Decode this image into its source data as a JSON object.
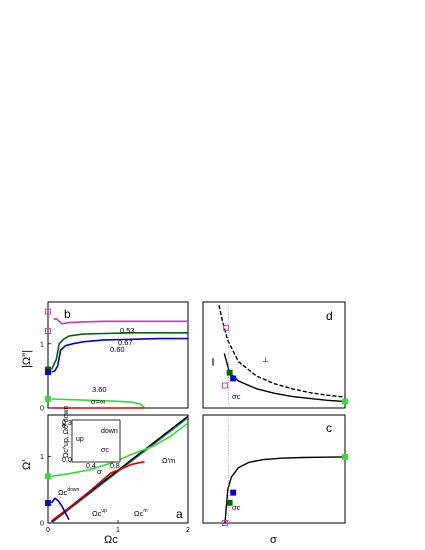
{
  "colors": {
    "magenta": "#cc33cc",
    "green_dark": "#006600",
    "blue": "#0000cc",
    "green_light": "#33dd33",
    "red": "#dd0000",
    "teal": "#3c8c8c",
    "orange": "#cc6600",
    "black": "#000000"
  },
  "chart_data": [
    {
      "id": "b",
      "type": "line",
      "panel_letter": "b",
      "ylabel": "|Ω''|",
      "xlim": [
        0,
        2
      ],
      "ylim": [
        0,
        1.65
      ],
      "yticks": [
        "0",
        "1"
      ],
      "series": [
        {
          "name": "0.53",
          "color": "magenta",
          "x": [
            0.08,
            0.12,
            0.2,
            0.3,
            0.5,
            0.8,
            1.2,
            1.6,
            2.0
          ],
          "y": [
            1.38,
            1.39,
            1.31,
            1.33,
            1.34,
            1.35,
            1.35,
            1.35,
            1.35
          ]
        },
        {
          "name": "0.67",
          "color": "green_dark",
          "x": [
            0.05,
            0.12,
            0.16,
            0.22,
            0.3,
            0.5,
            0.8,
            1.2,
            1.6,
            2.0
          ],
          "y": [
            0.6,
            0.76,
            1.0,
            1.07,
            1.12,
            1.15,
            1.16,
            1.17,
            1.17,
            1.17
          ]
        },
        {
          "name": "0.60",
          "color": "blue",
          "x": [
            0.05,
            0.1,
            0.14,
            0.18,
            0.25,
            0.35,
            0.5,
            0.8,
            1.2,
            1.6,
            2.0
          ],
          "y": [
            0.56,
            0.58,
            0.66,
            0.9,
            0.97,
            1.0,
            1.03,
            1.06,
            1.07,
            1.08,
            1.08
          ]
        },
        {
          "name": "3.60",
          "color": "green_light",
          "x": [
            0.05,
            0.3,
            0.6,
            0.9,
            1.2,
            1.32,
            1.36,
            1.38
          ],
          "y": [
            0.14,
            0.13,
            0.12,
            0.11,
            0.09,
            0.06,
            0.02,
            0.0
          ]
        },
        {
          "name": "σ=∞",
          "color": "red",
          "x": [
            0.05,
            1.38
          ],
          "y": [
            0.0,
            0.0
          ]
        }
      ],
      "labels": [
        "0.53",
        "0.67",
        "0.60",
        "3.60",
        "σ=∞"
      ]
    },
    {
      "id": "a",
      "type": "line",
      "panel_letter": "a",
      "ylabel": "Ω'",
      "xlabel": "Ωc",
      "xlim": [
        0,
        2
      ],
      "ylim": [
        0,
        1.62
      ],
      "xticks": [
        "0",
        "1",
        "2"
      ],
      "yticks": [
        "0",
        "1"
      ],
      "series": [
        {
          "name": "teal",
          "color": "teal",
          "x": [
            0.05,
            2.0
          ],
          "y": [
            0.0,
            1.58
          ]
        },
        {
          "name": "black",
          "color": "black",
          "x": [
            0.05,
            2.0
          ],
          "y": [
            0.02,
            1.6
          ]
        },
        {
          "name": "green_light",
          "color": "green_light",
          "x": [
            0.05,
            0.3,
            0.6,
            0.9,
            1.2,
            1.5,
            1.75,
            2.0
          ],
          "y": [
            0.7,
            0.74,
            0.8,
            0.9,
            1.03,
            1.15,
            1.3,
            1.5
          ]
        },
        {
          "name": "red",
          "color": "red",
          "x": [
            0.05,
            0.3,
            0.6,
            0.9,
            1.2,
            1.38
          ],
          "y": [
            0.03,
            0.23,
            0.48,
            0.75,
            0.88,
            0.92
          ]
        },
        {
          "name": "blue",
          "color": "blue",
          "x": [
            0.05,
            0.1,
            0.15,
            0.2,
            0.25,
            0.3
          ],
          "y": [
            0.3,
            0.37,
            0.33,
            0.25,
            0.15,
            0.05
          ]
        }
      ],
      "labels": {
        "omega_c_down": "Ωc",
        "omega_c_down_sup": "down",
        "omega_c_up": "Ωc",
        "omega_c_up_sup": "up",
        "omega_c_m": "Ωc",
        "omega_c_m_sup": "m",
        "omega_m_prime": "Ω'm",
        "sigma": "σ"
      },
      "inset": {
        "panel_letter": "e",
        "ylabel": "Ωc^up, Ωc^down",
        "xticks": [
          "0,4",
          "0,8"
        ],
        "yticks": [
          "0,0",
          "0,3"
        ],
        "label_up": "up",
        "label_down": "down",
        "label_sigma_c": "σc"
      }
    },
    {
      "id": "d",
      "type": "line",
      "panel_letter": "d",
      "xlim": [
        0,
        4
      ],
      "ylim": [
        0,
        1.65
      ],
      "series": [
        {
          "name": "∥",
          "color": "black",
          "style": "solid",
          "x": [
            0.6,
            0.75,
            1.0,
            1.5,
            2.0,
            2.5,
            3.0,
            3.5,
            4.0
          ],
          "y": [
            0.85,
            0.55,
            0.42,
            0.3,
            0.23,
            0.18,
            0.15,
            0.12,
            0.1
          ]
        },
        {
          "name": "⊥",
          "color": "black",
          "style": "dashed",
          "x": [
            0.45,
            0.55,
            0.7,
            1.0,
            1.5,
            2.0,
            2.5,
            3.0,
            3.5,
            4.0
          ],
          "y": [
            1.6,
            1.35,
            1.05,
            0.72,
            0.5,
            0.38,
            0.3,
            0.24,
            0.2,
            0.17
          ]
        }
      ],
      "labels": {
        "parallel": "∥",
        "perp": "⊥",
        "sigma_c": "σc"
      }
    },
    {
      "id": "c",
      "type": "line",
      "panel_letter": "c",
      "xlabel": "σ",
      "xlim": [
        0,
        4
      ],
      "ylim": [
        0,
        1.6
      ],
      "series": [
        {
          "name": "c-curve",
          "color": "black",
          "x": [
            0.62,
            0.7,
            0.8,
            1.0,
            1.3,
            1.7,
            2.2,
            2.8,
            3.4,
            4.0
          ],
          "y": [
            0.0,
            0.5,
            0.68,
            0.82,
            0.9,
            0.94,
            0.96,
            0.97,
            0.975,
            0.98
          ]
        }
      ],
      "labels": {
        "sigma_c": "σc"
      }
    }
  ]
}
